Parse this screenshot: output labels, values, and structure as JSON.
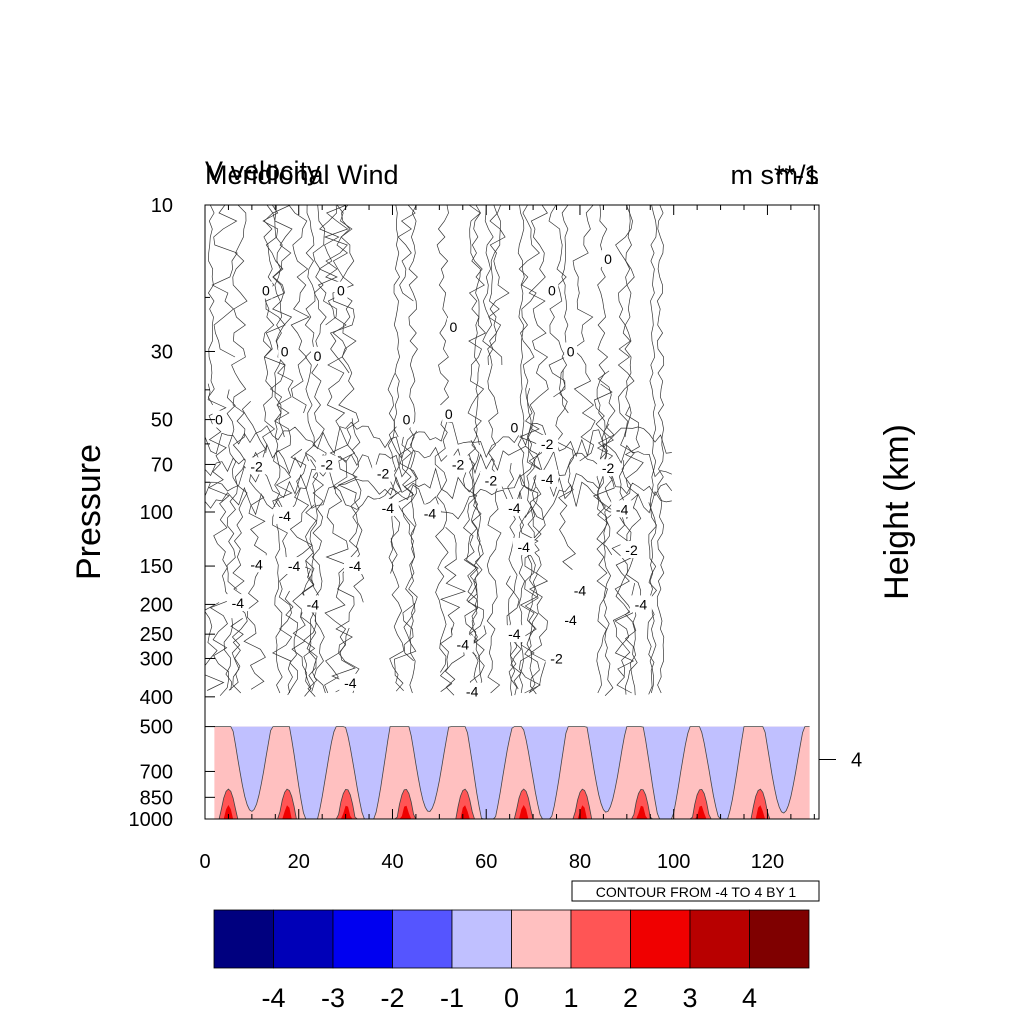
{
  "chart_data": {
    "type": "contour",
    "title_left_lines": [
      "V velocity",
      "Meridional Wind"
    ],
    "title_right_lines": [
      "m s**-1",
      "m/s"
    ],
    "ylabel": "Pressure",
    "ylabel_right": "Height (km)",
    "xlabel": "",
    "x_range": [
      0,
      131
    ],
    "x_ticks": [
      0,
      20,
      40,
      60,
      80,
      100,
      120
    ],
    "y_scale": "log",
    "y_reversed": true,
    "y_range": [
      10,
      1000
    ],
    "y_ticks": [
      10,
      30,
      50,
      70,
      100,
      150,
      200,
      250,
      300,
      400,
      500,
      700,
      850,
      1000
    ],
    "right_axis_ticks": [
      {
        "height_km": 4,
        "pressure": 640
      }
    ],
    "contour_info": "CONTOUR FROM -4 TO 4 BY 1",
    "contour_range": [
      -4,
      4
    ],
    "contour_interval": 1,
    "colorbar": {
      "labels": [
        "-4",
        "-3",
        "-2",
        "-1",
        "0",
        "1",
        "2",
        "3",
        "4"
      ],
      "colors": [
        "#00007f",
        "#0000b8",
        "#0000f0",
        "#5555ff",
        "#c0c0ff",
        "#ffc0c0",
        "#ff5555",
        "#f00000",
        "#b80000",
        "#7f0000"
      ]
    },
    "line_contour_labels": [
      {
        "x": 13,
        "p": 19,
        "v": "0"
      },
      {
        "x": 29,
        "p": 19,
        "v": "0"
      },
      {
        "x": 74,
        "p": 19,
        "v": "0"
      },
      {
        "x": 86,
        "p": 15,
        "v": "0"
      },
      {
        "x": 53,
        "p": 25,
        "v": "0"
      },
      {
        "x": 17,
        "p": 30,
        "v": "0"
      },
      {
        "x": 24,
        "p": 31,
        "v": "0"
      },
      {
        "x": 78,
        "p": 30,
        "v": "0"
      },
      {
        "x": 3,
        "p": 50,
        "v": "0"
      },
      {
        "x": 43,
        "p": 50,
        "v": "0"
      },
      {
        "x": 52,
        "p": 48,
        "v": "0"
      },
      {
        "x": 66,
        "p": 53,
        "v": "0"
      },
      {
        "x": 73,
        "p": 60,
        "v": "-2"
      },
      {
        "x": 11,
        "p": 71,
        "v": "-2"
      },
      {
        "x": 26,
        "p": 70,
        "v": "-2"
      },
      {
        "x": 38,
        "p": 75,
        "v": "-2"
      },
      {
        "x": 54,
        "p": 70,
        "v": "-2"
      },
      {
        "x": 61,
        "p": 79,
        "v": "-2"
      },
      {
        "x": 86,
        "p": 72,
        "v": "-2"
      },
      {
        "x": 73,
        "p": 78,
        "v": "-4"
      },
      {
        "x": 39,
        "p": 97,
        "v": "-4"
      },
      {
        "x": 48,
        "p": 101,
        "v": "-4"
      },
      {
        "x": 66,
        "p": 97,
        "v": "-4"
      },
      {
        "x": 89,
        "p": 98,
        "v": "-4"
      },
      {
        "x": 17,
        "p": 103,
        "v": "-4"
      },
      {
        "x": 68,
        "p": 130,
        "v": "-4"
      },
      {
        "x": 91,
        "p": 133,
        "v": "-2"
      },
      {
        "x": 11,
        "p": 148,
        "v": "-4"
      },
      {
        "x": 19,
        "p": 150,
        "v": "-4"
      },
      {
        "x": 32,
        "p": 150,
        "v": "-4"
      },
      {
        "x": 80,
        "p": 180,
        "v": "-4"
      },
      {
        "x": 7,
        "p": 198,
        "v": "-4"
      },
      {
        "x": 23,
        "p": 200,
        "v": "-4"
      },
      {
        "x": 93,
        "p": 200,
        "v": "-4"
      },
      {
        "x": 78,
        "p": 225,
        "v": "-4"
      },
      {
        "x": 66,
        "p": 250,
        "v": "-4"
      },
      {
        "x": 55,
        "p": 270,
        "v": "-4"
      },
      {
        "x": 75,
        "p": 300,
        "v": "-2"
      },
      {
        "x": 31,
        "p": 360,
        "v": "-4"
      },
      {
        "x": 57,
        "p": 385,
        "v": "-4"
      }
    ],
    "filled_region": {
      "x_start": 2,
      "x_end": 129,
      "p_top": 500,
      "p_bottom": 1000
    },
    "line_region": {
      "x_start": 0,
      "x_end": 100,
      "p_top": 10,
      "p_bottom": 400
    }
  }
}
